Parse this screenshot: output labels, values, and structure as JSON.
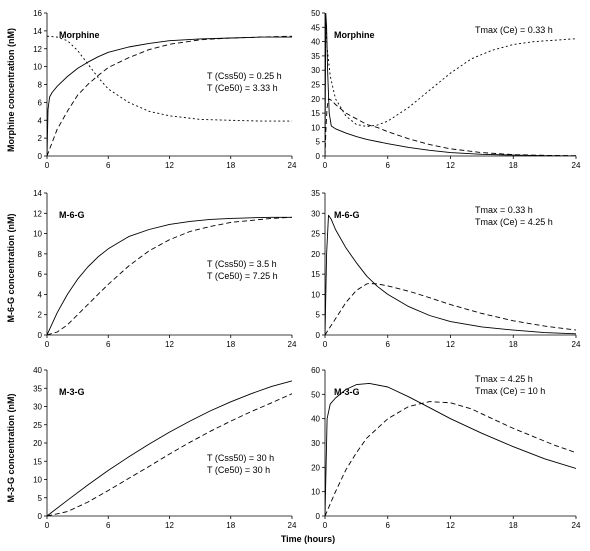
{
  "figure": {
    "xlabel": "Time  (hours)",
    "row_ylabels": [
      "Morphine concentration  (nM)",
      "M-6-G concentration  (nM)",
      "M-3-G concentration  (nM)"
    ]
  },
  "chart_data": [
    {
      "type": "line",
      "panel": "top-left",
      "label": "Morphine",
      "xlim": [
        0,
        24
      ],
      "ylim": [
        0,
        16
      ],
      "xticks": [
        0,
        6,
        12,
        18,
        24
      ],
      "yticks": [
        0,
        2,
        4,
        6,
        8,
        10,
        12,
        14,
        16
      ],
      "annotations": [
        "T (Css50) = 0.25 h",
        "T (Ce50) = 3.33 h"
      ],
      "series": [
        {
          "style": "solid",
          "x": [
            0,
            0.1,
            0.25,
            0.5,
            1,
            2,
            3,
            4,
            5,
            6,
            8,
            10,
            12,
            15,
            18,
            21,
            24
          ],
          "y": [
            0,
            5.2,
            6.6,
            7.1,
            7.8,
            8.9,
            9.8,
            10.5,
            11.1,
            11.6,
            12.2,
            12.6,
            12.9,
            13.1,
            13.2,
            13.3,
            13.3
          ]
        },
        {
          "style": "dashed",
          "x": [
            0,
            0.5,
            1,
            2,
            3,
            4,
            5,
            6,
            8,
            10,
            12,
            15,
            18,
            21,
            24
          ],
          "y": [
            0,
            1.5,
            3.0,
            5.0,
            6.8,
            8.0,
            9.0,
            9.9,
            11.0,
            11.9,
            12.5,
            13.0,
            13.2,
            13.3,
            13.4
          ]
        },
        {
          "style": "dotted",
          "x": [
            0,
            1,
            2,
            3,
            4,
            5,
            6,
            8,
            10,
            12,
            15,
            18,
            21,
            24
          ],
          "y": [
            13.4,
            13.3,
            12.9,
            11.8,
            10.3,
            8.8,
            7.5,
            6.0,
            5.0,
            4.5,
            4.1,
            4.0,
            3.9,
            3.9
          ]
        }
      ]
    },
    {
      "type": "line",
      "panel": "top-right",
      "label": "Morphine",
      "xlim": [
        0,
        24
      ],
      "ylim": [
        0,
        50
      ],
      "xticks": [
        0,
        6,
        12,
        18,
        24
      ],
      "yticks": [
        0,
        5,
        10,
        15,
        20,
        25,
        30,
        35,
        40,
        45,
        50
      ],
      "annotations": [
        "Tmax (Ce) = 0.33 h"
      ],
      "series": [
        {
          "style": "solid",
          "x": [
            0,
            0.08,
            0.15,
            0.25,
            0.4,
            0.6,
            1,
            2,
            3,
            4,
            6,
            8,
            10,
            12,
            15,
            18,
            21,
            24
          ],
          "y": [
            0,
            50,
            45,
            30,
            15,
            10.5,
            9.5,
            8,
            6.8,
            5.8,
            4.3,
            3,
            2,
            1.2,
            0.6,
            0.3,
            0.1,
            0.05
          ]
        },
        {
          "style": "dashed",
          "x": [
            0,
            0.1,
            0.2,
            0.33,
            0.6,
            1,
            2,
            3,
            4,
            5,
            6,
            8,
            10,
            12,
            15,
            18,
            21,
            24
          ],
          "y": [
            0,
            10,
            17,
            20,
            19.5,
            18,
            15,
            13,
            11,
            10,
            8.5,
            6,
            4,
            2.5,
            1.2,
            0.5,
            0.2,
            0.1
          ]
        },
        {
          "style": "dotted",
          "x": [
            0,
            0.2,
            0.5,
            1,
            2,
            3,
            4,
            5,
            6,
            8,
            10,
            12,
            14,
            16,
            18,
            20,
            22,
            24
          ],
          "y": [
            48,
            38,
            28,
            20,
            14,
            11,
            10.3,
            10.8,
            12.2,
            17,
            23,
            29,
            34,
            37,
            39,
            40,
            40.5,
            41
          ]
        }
      ]
    },
    {
      "type": "line",
      "panel": "middle-left",
      "label": "M-6-G",
      "xlim": [
        0,
        24
      ],
      "ylim": [
        0,
        14
      ],
      "xticks": [
        0,
        6,
        12,
        18,
        24
      ],
      "yticks": [
        0,
        2,
        4,
        6,
        8,
        10,
        12,
        14
      ],
      "annotations": [
        "T (Css50) = 3.5 h",
        "T (Ce50) = 7.25 h"
      ],
      "series": [
        {
          "style": "solid",
          "x": [
            0,
            1,
            2,
            3,
            4,
            5,
            6,
            8,
            10,
            12,
            14,
            16,
            18,
            20,
            22,
            24
          ],
          "y": [
            0,
            2.2,
            4.0,
            5.5,
            6.7,
            7.7,
            8.5,
            9.7,
            10.4,
            10.9,
            11.2,
            11.4,
            11.5,
            11.55,
            11.6,
            11.6
          ]
        },
        {
          "style": "dashed",
          "x": [
            0,
            1,
            2,
            3,
            4,
            5,
            6,
            8,
            10,
            12,
            14,
            16,
            18,
            20,
            22,
            24
          ],
          "y": [
            0,
            0.3,
            1.0,
            2.0,
            3.0,
            4.0,
            5.0,
            6.8,
            8.3,
            9.4,
            10.2,
            10.7,
            11.1,
            11.3,
            11.5,
            11.6
          ]
        }
      ]
    },
    {
      "type": "line",
      "panel": "middle-right",
      "label": "M-6-G",
      "xlim": [
        0,
        24
      ],
      "ylim": [
        0,
        35
      ],
      "xticks": [
        0,
        6,
        12,
        18,
        24
      ],
      "yticks": [
        0,
        5,
        10,
        15,
        20,
        25,
        30,
        35
      ],
      "annotations": [
        "Tmax = 0.33 h",
        "Tmax (Ce) = 4.25 h"
      ],
      "series": [
        {
          "style": "solid",
          "x": [
            0,
            0.15,
            0.33,
            0.6,
            1,
            2,
            3,
            4,
            5,
            6,
            8,
            10,
            12,
            15,
            18,
            21,
            24
          ],
          "y": [
            0,
            20,
            29.5,
            28.5,
            26,
            21.5,
            17.8,
            14.5,
            12,
            10,
            7,
            4.8,
            3.3,
            2,
            1.2,
            0.6,
            0.3
          ]
        },
        {
          "style": "dashed",
          "x": [
            0,
            0.5,
            1,
            2,
            3,
            4,
            4.25,
            5,
            6,
            8,
            10,
            12,
            15,
            18,
            21,
            24
          ],
          "y": [
            0,
            2,
            4,
            8,
            11,
            12.6,
            12.7,
            12.6,
            12.1,
            10.8,
            9.2,
            7.5,
            5.3,
            3.5,
            2.2,
            1.2
          ]
        }
      ]
    },
    {
      "type": "line",
      "panel": "bottom-left",
      "label": "M-3-G",
      "xlim": [
        0,
        24
      ],
      "ylim": [
        0,
        40
      ],
      "xticks": [
        0,
        6,
        12,
        18,
        24
      ],
      "yticks": [
        0,
        5,
        10,
        15,
        20,
        25,
        30,
        35,
        40
      ],
      "annotations": [
        "T (Css50) = 30 h",
        "T (Ce50) = 30 h"
      ],
      "series": [
        {
          "style": "solid",
          "x": [
            0,
            2,
            4,
            6,
            8,
            10,
            12,
            14,
            16,
            18,
            20,
            22,
            24
          ],
          "y": [
            0,
            4.3,
            8.5,
            12.5,
            16.2,
            19.7,
            23,
            26,
            28.8,
            31.3,
            33.5,
            35.5,
            37
          ]
        },
        {
          "style": "dashed",
          "x": [
            0,
            2,
            4,
            6,
            8,
            10,
            12,
            14,
            16,
            18,
            20,
            22,
            24
          ],
          "y": [
            0,
            1.2,
            3.8,
            7.0,
            10.3,
            13.6,
            17,
            20.2,
            23.2,
            26,
            28.6,
            31,
            33.5
          ]
        }
      ]
    },
    {
      "type": "line",
      "panel": "bottom-right",
      "label": "M-3-G",
      "xlim": [
        0,
        24
      ],
      "ylim": [
        0,
        60
      ],
      "xticks": [
        0,
        6,
        12,
        18,
        24
      ],
      "yticks": [
        0,
        10,
        20,
        30,
        40,
        50,
        60
      ],
      "annotations": [
        "Tmax = 4.25 h",
        "Tmax (Ce) = 10 h"
      ],
      "series": [
        {
          "style": "solid",
          "x": [
            0,
            0.2,
            0.5,
            1,
            2,
            3,
            4.25,
            6,
            8,
            10,
            12,
            15,
            18,
            21,
            24
          ],
          "y": [
            0,
            40,
            46,
            48.5,
            52,
            54,
            54.5,
            53,
            49,
            44.5,
            40,
            34,
            28.5,
            23.5,
            19.5
          ]
        },
        {
          "style": "dashed",
          "x": [
            0,
            1,
            2,
            3,
            4,
            6,
            8,
            10,
            12,
            14,
            16,
            18,
            20,
            22,
            24
          ],
          "y": [
            0,
            10,
            19,
            26,
            32,
            40,
            45,
            47,
            46.5,
            44,
            40,
            36,
            32.5,
            29,
            26
          ]
        }
      ]
    }
  ]
}
